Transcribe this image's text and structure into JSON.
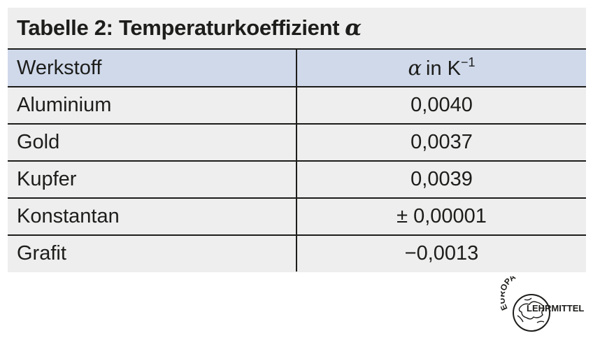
{
  "table": {
    "title": "Tabelle 2:  Temperaturkoeffizient",
    "title_symbol": "α",
    "header": {
      "col1": "Werkstoff",
      "col2_symbol": "α",
      "col2_text": "in K",
      "col2_exp": "−1"
    },
    "rows": [
      {
        "material": "Aluminium",
        "value": "0,0040"
      },
      {
        "material": "Gold",
        "value": "0,0037"
      },
      {
        "material": "Kupfer",
        "value": "0,0039"
      },
      {
        "material": "Konstantan",
        "value": "± 0,00001"
      },
      {
        "material": "Grafit",
        "value": "−0,0013"
      }
    ]
  },
  "logo": {
    "top_text": "EUROPA",
    "side_text": "LEHRMITTEL",
    "icon": "globe-icon"
  },
  "colors": {
    "table_background": "#eeeeee",
    "header_row_background": "#cfd9ea",
    "rule_color": "#1d1d1b"
  }
}
